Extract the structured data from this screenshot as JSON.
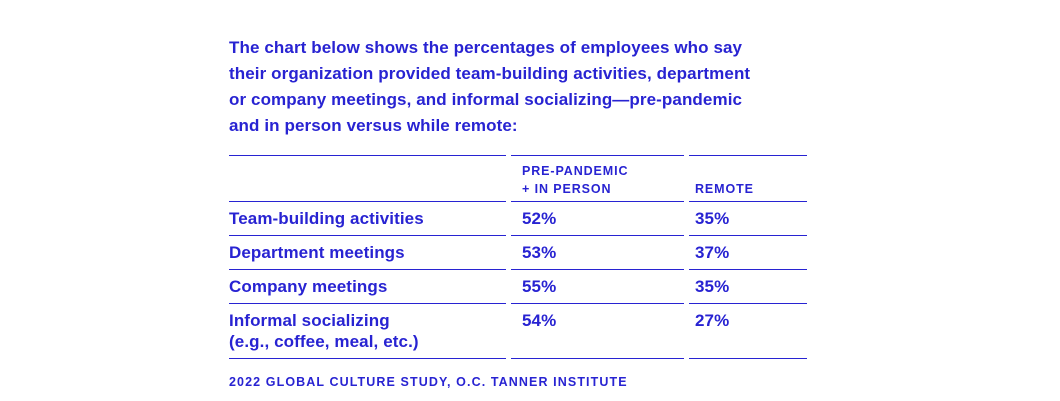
{
  "intro": {
    "lines": [
      "The chart below shows the percentages of employees who say",
      "their organization provided team-building activities, department",
      "or company meetings, and informal socializing—pre-pandemic",
      "and in person versus while remote:"
    ]
  },
  "table": {
    "header": {
      "col1": "",
      "col2_line1": "PRE-PANDEMIC",
      "col2_line2": "+ IN PERSON",
      "col3": "REMOTE"
    },
    "rows": [
      {
        "label": "Team-building activities",
        "pre": "52%",
        "remote": "35%"
      },
      {
        "label": "Department meetings",
        "pre": "53%",
        "remote": "37%"
      },
      {
        "label": "Company meetings",
        "pre": "55%",
        "remote": "35%"
      },
      {
        "label": "Informal socializing",
        "note": "(e.g., coffee, meal, etc.)",
        "pre": "54%",
        "remote": "27%"
      }
    ]
  },
  "footer": {
    "text": "2022 GLOBAL CULTURE STUDY, O.C. TANNER INSTITUTE"
  },
  "colors": {
    "ink": "#2823D2",
    "background": "#FFFFFF"
  },
  "chart_data": {
    "type": "table",
    "title": "The chart below shows the percentages of employees who say their organization provided team-building activities, department or company meetings, and informal socializing—pre-pandemic and in person versus while remote:",
    "columns": [
      "",
      "PRE-PANDEMIC + IN PERSON",
      "REMOTE"
    ],
    "categories": [
      "Team-building activities",
      "Department meetings",
      "Company meetings",
      "Informal socializing (e.g., coffee, meal, etc.)"
    ],
    "series": [
      {
        "name": "Pre-pandemic + in person",
        "values": [
          52,
          53,
          55,
          54
        ]
      },
      {
        "name": "Remote",
        "values": [
          35,
          37,
          35,
          27
        ]
      }
    ],
    "units": "percent",
    "source": "2022 GLOBAL CULTURE STUDY, O.C. TANNER INSTITUTE",
    "legend_position": "none",
    "grid": "horizontal-rules-only"
  }
}
